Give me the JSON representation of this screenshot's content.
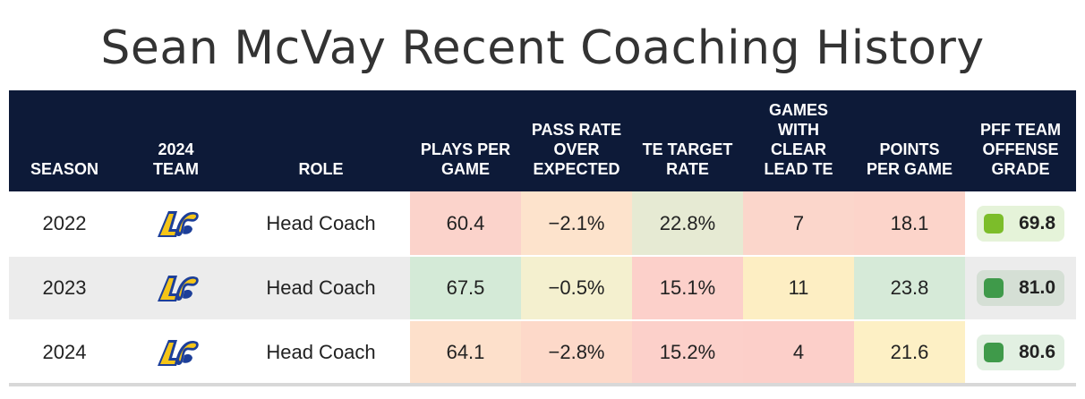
{
  "title": "Sean McVay Recent Coaching History",
  "columns": {
    "season": "SEASON",
    "team": "2024\nTEAM",
    "role": "ROLE",
    "plays": "PLAYS PER\nGAME",
    "proe": "PASS RATE\nOVER\nEXPECTED",
    "te_target": "TE TARGET\nRATE",
    "lead_te": "GAMES\nWITH\nCLEAR\nLEAD TE",
    "ppg": "POINTS\nPER GAME",
    "pff": "PFF TEAM\nOFFENSE\nGRADE"
  },
  "team_logo_icon": "la-rams-logo-icon",
  "rows": [
    {
      "season": "2022",
      "role": "Head Coach",
      "plays": "60.4",
      "proe": "−2.1%",
      "te_target": "22.8%",
      "lead_te": "7",
      "ppg": "18.1",
      "pff": "69.8",
      "colors": {
        "plays": "#fbd3cb",
        "proe": "#fde3cc",
        "te_target": "#e6ead3",
        "lead_te": "#fbd6cb",
        "ppg": "#fcd4ca",
        "pff_bg": "#e5f3d9",
        "pff_dot": "#7cbd2a"
      }
    },
    {
      "season": "2023",
      "role": "Head Coach",
      "plays": "67.5",
      "proe": "−0.5%",
      "te_target": "15.1%",
      "lead_te": "11",
      "ppg": "23.8",
      "pff": "81.0",
      "colors": {
        "plays": "#d4ead7",
        "proe": "#f4f0cf",
        "te_target": "#fcd0ca",
        "lead_te": "#fdeec3",
        "ppg": "#d6ead8",
        "pff_bg": "#d5dfd5",
        "pff_dot": "#3f9a4a"
      }
    },
    {
      "season": "2024",
      "role": "Head Coach",
      "plays": "64.1",
      "proe": "−2.8%",
      "te_target": "15.2%",
      "lead_te": "4",
      "ppg": "21.6",
      "pff": "80.6",
      "colors": {
        "plays": "#fde0cb",
        "proe": "#fdd9c9",
        "te_target": "#fcd0ca",
        "lead_te": "#fccfc9",
        "ppg": "#fdf0c5",
        "pff_bg": "#e2f0e2",
        "pff_dot": "#3f9a4a"
      }
    }
  ]
}
